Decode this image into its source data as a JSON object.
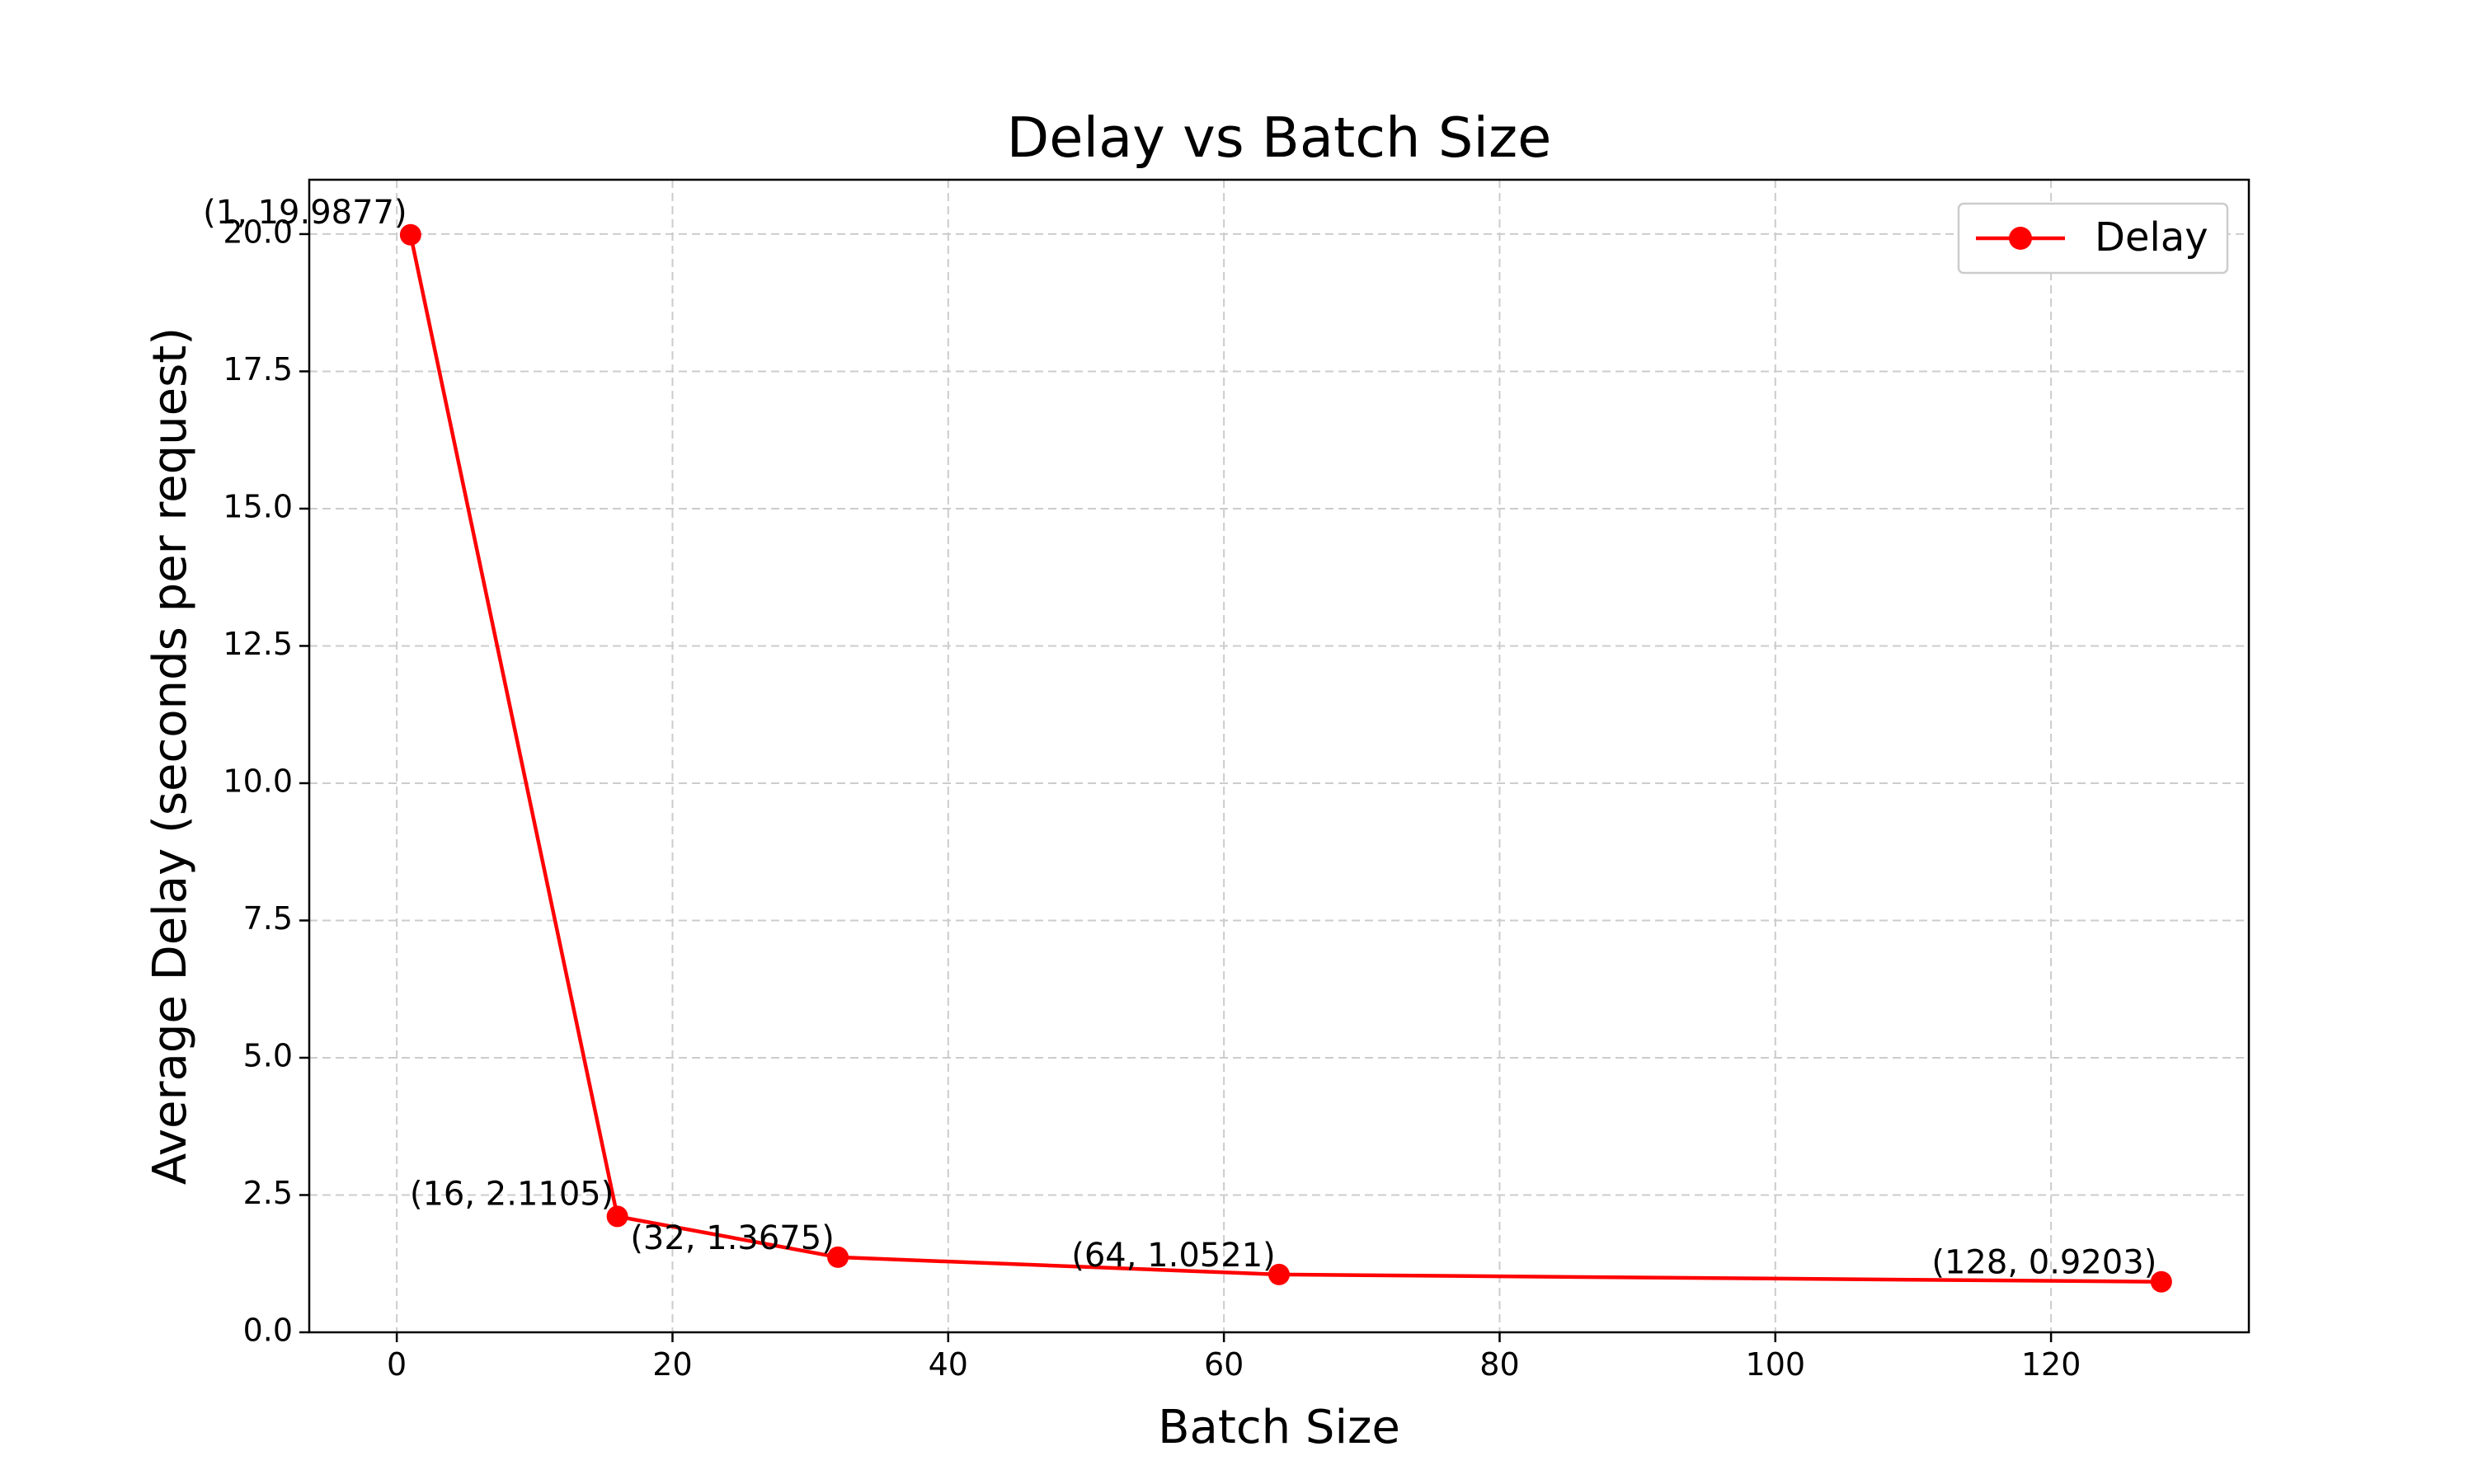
{
  "chart_data": {
    "type": "line",
    "title": "Delay vs Batch Size",
    "xlabel": "Batch Size",
    "ylabel": "Average Delay (seconds per request)",
    "xlim": [
      -6.35,
      134.35
    ],
    "ylim": [
      0,
      20.99
    ],
    "xticks": [
      0,
      20,
      40,
      60,
      80,
      100,
      120
    ],
    "yticks": [
      0.0,
      2.5,
      5.0,
      7.5,
      10.0,
      12.5,
      15.0,
      17.5,
      20.0
    ],
    "xtick_labels": [
      "0",
      "20",
      "40",
      "60",
      "80",
      "100",
      "120"
    ],
    "ytick_labels": [
      "0.0",
      "2.5",
      "5.0",
      "7.5",
      "10.0",
      "12.5",
      "15.0",
      "17.5",
      "20.0"
    ],
    "grid": true,
    "legend_position": "top-right",
    "series": [
      {
        "name": "Delay",
        "color": "#ff0000",
        "marker": "circle",
        "x": [
          1,
          16,
          32,
          64,
          128
        ],
        "y": [
          19.9877,
          2.1105,
          1.3675,
          1.0521,
          0.9203
        ]
      }
    ],
    "annotations": [
      "(1, 19.9877)",
      "(16, 2.1105)",
      "(32, 1.3675)",
      "(64, 1.0521)",
      "(128, 0.9203)"
    ]
  }
}
